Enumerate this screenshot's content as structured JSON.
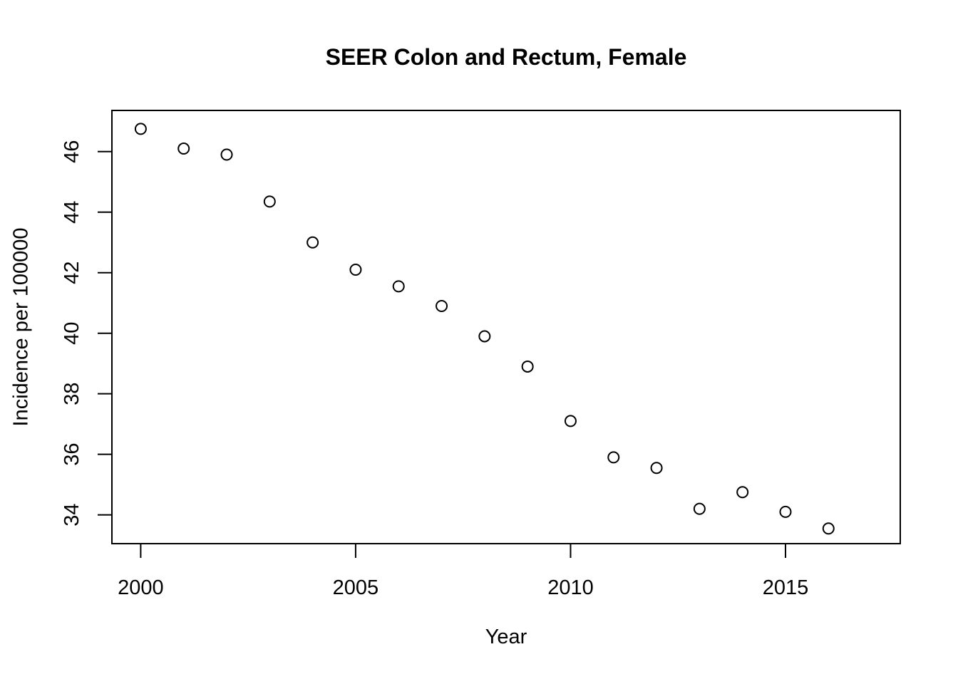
{
  "figure": {
    "background": "#ffffff",
    "foreground": "#000000"
  },
  "chart_data": {
    "type": "scatter",
    "title": "SEER Colon and Rectum, Female",
    "xlabel": "Year",
    "ylabel": "Incidence per 100000",
    "x": [
      2000,
      2001,
      2002,
      2003,
      2004,
      2005,
      2006,
      2007,
      2008,
      2009,
      2010,
      2011,
      2012,
      2013,
      2014,
      2015,
      2016
    ],
    "y": [
      46.75,
      46.1,
      45.9,
      44.35,
      43.0,
      42.1,
      41.55,
      40.9,
      39.9,
      38.9,
      37.1,
      35.9,
      35.55,
      34.2,
      34.75,
      34.1,
      33.55
    ],
    "xticks": [
      2000,
      2005,
      2010,
      2015
    ],
    "yticks": [
      34,
      36,
      38,
      40,
      42,
      44,
      46
    ],
    "xlim": [
      1999.33,
      2017.67
    ],
    "ylim": [
      33.05,
      47.36
    ],
    "grid": false,
    "legend": "none",
    "point_style": {
      "shape": "open-circle",
      "stroke_color": "#000000",
      "fill_color": "none"
    }
  }
}
